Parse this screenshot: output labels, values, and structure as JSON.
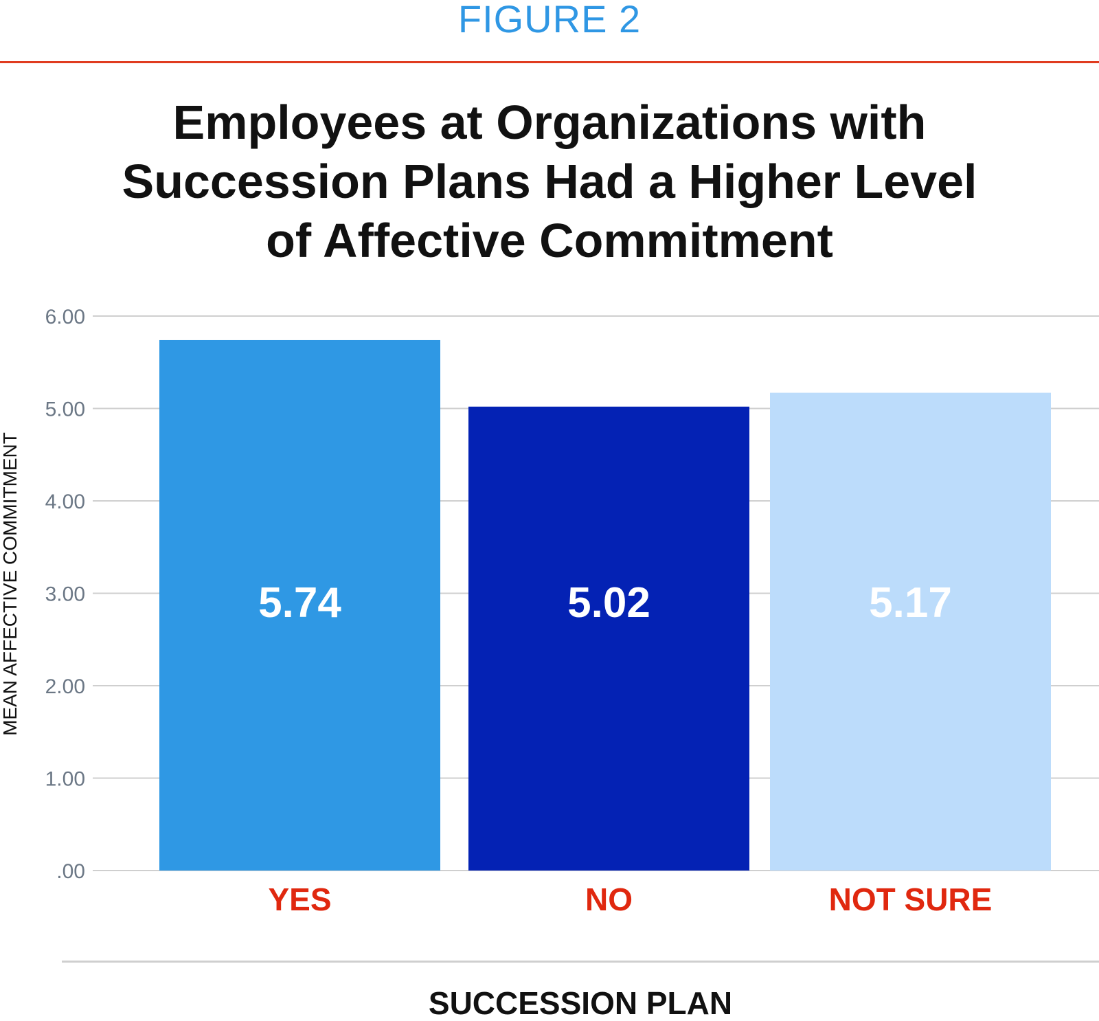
{
  "figure_label": "FIGURE 2",
  "chart_data": {
    "type": "bar",
    "title_lines": [
      "Employees at Organizations with",
      "Succession Plans Had a Higher Level",
      "of Affective Commitment"
    ],
    "categories": [
      "YES",
      "NO",
      "NOT SURE"
    ],
    "values": [
      5.74,
      5.02,
      5.17
    ],
    "value_labels": [
      "5.74",
      "5.02",
      "5.17"
    ],
    "bar_colors": [
      "#2f98e4",
      "#0422b4",
      "#bcdcfb"
    ],
    "ylabel": "MEAN AFFECTIVE COMMITMENT",
    "xlabel": "SUCCESSION PLAN",
    "ylim": [
      0,
      6
    ],
    "y_ticks": [
      0,
      1,
      2,
      3,
      4,
      5,
      6
    ],
    "y_tick_labels": [
      ".00",
      "1.00",
      "2.00",
      "3.00",
      "4.00",
      "5.00",
      "6.00"
    ],
    "grid": true,
    "legend": "none"
  }
}
